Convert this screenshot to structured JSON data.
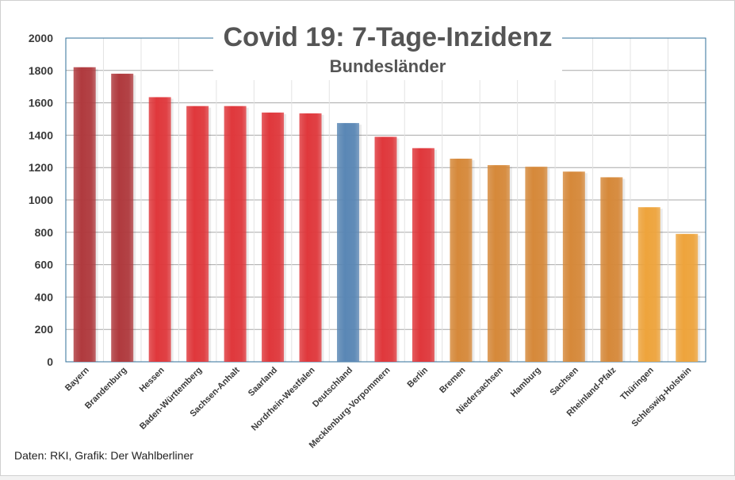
{
  "chart_data": {
    "type": "bar",
    "title": "Covid 19: 7-Tage-Inzidenz",
    "subtitle": "Bundesländer",
    "categories": [
      "Bayern",
      "Brandenburg",
      "Hessen",
      "Baden-Württemberg",
      "Sachsen-Anhalt",
      "Saarland",
      "Nordrhein-Westfalen",
      "Deutschland",
      "Mecklenburg-Vorpommern",
      "Berlin",
      "Bremen",
      "Niedersachsen",
      "Hamburg",
      "Sachsen",
      "Rheinland-Pfalz",
      "Thüringen",
      "Schleswig-Holstein"
    ],
    "values": [
      1820,
      1780,
      1635,
      1580,
      1580,
      1540,
      1535,
      1475,
      1390,
      1320,
      1255,
      1215,
      1205,
      1175,
      1140,
      955,
      790
    ],
    "bar_colors": [
      "#b03a3e",
      "#b03a3e",
      "#e0383c",
      "#e0383c",
      "#e0383c",
      "#e0383c",
      "#e0383c",
      "#5a87b5",
      "#e0383c",
      "#e0383c",
      "#d6893a",
      "#d6893a",
      "#d6893a",
      "#d6893a",
      "#d6893a",
      "#eea43c",
      "#eea43c"
    ],
    "yticks": [
      0,
      200,
      400,
      600,
      800,
      1000,
      1200,
      1400,
      1600,
      1800,
      2000
    ],
    "ylim": [
      0,
      2000
    ],
    "xlabel": "",
    "ylabel": "",
    "grid": true,
    "legend": "none"
  },
  "footer": {
    "source": "Daten: RKI, Grafik: Der Wahlberliner"
  }
}
